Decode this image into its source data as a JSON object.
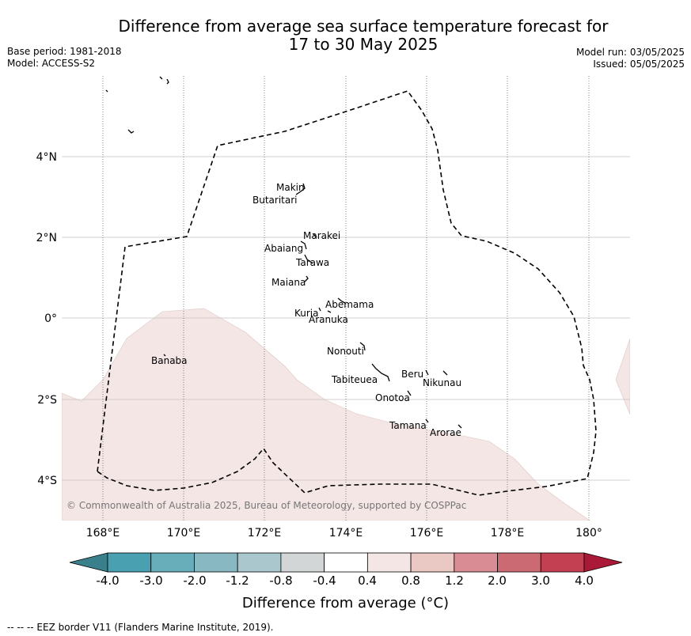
{
  "title_line1": "Difference from average sea surface temperature forecast for",
  "title_line2": "17 to 30 May 2025",
  "meta_left": {
    "base_period": "Base period: 1981-2018",
    "model": "Model: ACCESS-S2"
  },
  "meta_right": {
    "model_run": "Model run: 03/05/2025",
    "issued": "Issued: 05/05/2025"
  },
  "lat_labels": [
    "4°N",
    "2°N",
    "0°",
    "2°S",
    "4°S"
  ],
  "lon_labels": [
    "168°E",
    "170°E",
    "172°E",
    "174°E",
    "176°E",
    "178°E",
    "180°"
  ],
  "places": [
    "Makin",
    "Butaritari",
    "Marakei",
    "Abaiang",
    "Tarawa",
    "Maiana",
    "Abemama",
    "Kuria",
    "Aranuka",
    "Nonouti",
    "Banaba",
    "Beru",
    "Nikunau",
    "Tabiteuea",
    "Onotoa",
    "Tamana",
    "Arorae"
  ],
  "anomaly_region_color": "#f4e6e4",
  "copyright": "© Commonwealth of Australia 2025, Bureau of Meteorology, supported by COSPPac",
  "colorbar": {
    "ticks": [
      "-4.0",
      "-3.0",
      "-2.0",
      "-1.2",
      "-0.8",
      "-0.4",
      "0.4",
      "0.8",
      "1.2",
      "2.0",
      "3.0",
      "4.0"
    ],
    "colors": [
      "#3a7f8c",
      "#48a0b0",
      "#68adba",
      "#88b9c3",
      "#a9c7cc",
      "#d3d6d7",
      "#ffffff",
      "#f4e6e4",
      "#eac8c4",
      "#d98c94",
      "#cc6a74",
      "#c24052",
      "#aa1a38"
    ],
    "label": "Difference from average (°C)"
  },
  "footer": "--  --  -- EEZ border V11 (Flanders Marine Institute, 2019)."
}
